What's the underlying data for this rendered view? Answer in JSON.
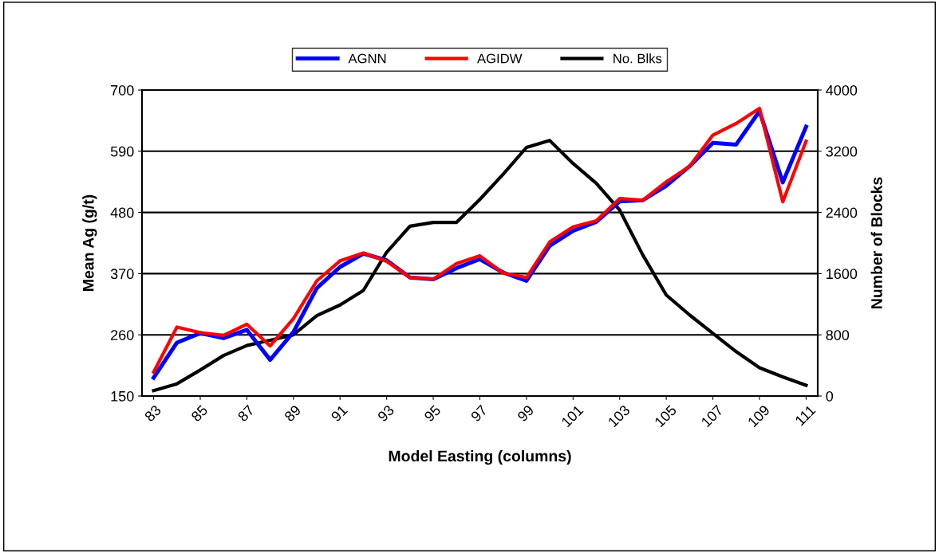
{
  "chart_data": {
    "type": "line",
    "xlabel": "Model Easting (columns)",
    "ylabel": "Mean Ag (g/t)",
    "y2label": "Number of Blocks",
    "x": [
      83,
      84,
      85,
      86,
      87,
      88,
      89,
      90,
      91,
      92,
      93,
      94,
      95,
      96,
      97,
      98,
      99,
      100,
      101,
      102,
      103,
      104,
      105,
      106,
      107,
      108,
      109,
      110,
      111
    ],
    "series": [
      {
        "name": "AGNN",
        "color": "#0000ff",
        "values": [
          183,
          246,
          263,
          254,
          269,
          215,
          265,
          344,
          382,
          406,
          394,
          363,
          360,
          380,
          396,
          372,
          357,
          420,
          447,
          463,
          500,
          502,
          528,
          563,
          605,
          602,
          662,
          534,
          634
        ]
      },
      {
        "name": "AGIDW",
        "color": "#ff0000",
        "values": [
          193,
          274,
          264,
          259,
          279,
          240,
          289,
          357,
          393,
          407,
          392,
          363,
          360,
          388,
          402,
          371,
          363,
          427,
          454,
          465,
          505,
          502,
          535,
          563,
          619,
          640,
          667,
          499,
          608
        ]
      },
      {
        "name": "No. Blks",
        "color": "#000000",
        "axis": "y2",
        "values": [
          70,
          160,
          340,
          530,
          660,
          730,
          800,
          1050,
          1190,
          1380,
          1880,
          2220,
          2270,
          2270,
          2570,
          2900,
          3250,
          3340,
          3040,
          2780,
          2430,
          1840,
          1320,
          1060,
          820,
          580,
          370,
          250,
          140
        ]
      }
    ],
    "xlim": [
      82.5,
      111.5
    ],
    "xticks": [
      83,
      85,
      87,
      89,
      91,
      93,
      95,
      97,
      99,
      101,
      103,
      105,
      107,
      109,
      111
    ],
    "ylim": [
      150,
      700
    ],
    "yticks": [
      150,
      260,
      370,
      480,
      590,
      700
    ],
    "y2lim": [
      0,
      4000
    ],
    "y2ticks": [
      0,
      800,
      1600,
      2400,
      3200,
      4000
    ],
    "grid": "y",
    "legend": "top",
    "marker": "none",
    "line_style": "solid"
  }
}
